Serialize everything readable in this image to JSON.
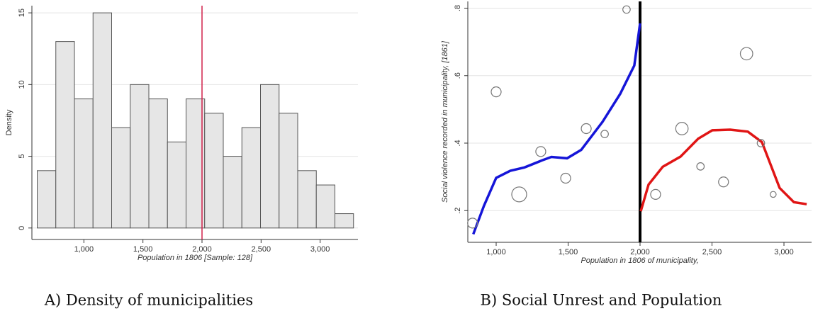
{
  "chart_data": [
    {
      "type": "histogram",
      "caption": "A) Density of municipalities",
      "x_label": "Population in 1806 [Sample: 128]",
      "y_label": "Density",
      "bins": [
        605,
        762.5,
        920,
        1077.5,
        1235,
        1392.5,
        1550,
        1707.5,
        1865,
        2022.5,
        2180,
        2337.5,
        2495,
        2652.5,
        2810,
        2967.5,
        3125,
        3282.5
      ],
      "values": [
        4,
        13,
        9,
        15,
        7,
        10,
        9,
        6,
        9,
        8,
        5,
        7,
        10,
        8,
        4,
        3,
        1
      ],
      "color": "#e6e6e6",
      "edge_color": "#555555",
      "cutoff": 2000,
      "cutoff_color": "#d0204a",
      "xlim": [
        560,
        3320
      ],
      "ylim": [
        -0.8,
        15.5
      ],
      "xticks": [
        {
          "value": 1000,
          "label": "1,000"
        },
        {
          "value": 1500,
          "label": "1,500"
        },
        {
          "value": 2000,
          "label": "2,000"
        },
        {
          "value": 2500,
          "label": "2,500"
        },
        {
          "value": 3000,
          "label": "3,000"
        }
      ],
      "yticks": [
        0,
        5,
        10,
        15
      ],
      "grid": true
    },
    {
      "type": "scatter",
      "caption": "B) Social Unrest and Population",
      "x_label": "Population in 1806 of municipality,",
      "y_label": "Social violence recorded in municipality, [1861]",
      "x": [
        836,
        1000,
        1160,
        1310,
        1483,
        1626,
        1754,
        1906,
        2108,
        2291,
        2420,
        2580,
        2740,
        2840,
        2925
      ],
      "values": [
        0.163,
        0.552,
        0.248,
        0.375,
        0.296,
        0.443,
        0.427,
        0.796,
        0.248,
        0.443,
        0.331,
        0.285,
        0.665,
        0.4,
        0.248
      ],
      "sizes": [
        2,
        2,
        3,
        2,
        2,
        2,
        1.5,
        1.5,
        2,
        2.5,
        1.5,
        2,
        2.5,
        1.5,
        1.2
      ],
      "color": "#777777",
      "lines": [
        {
          "color": "#1515d8",
          "x": [
            841,
            915,
            1000,
            1098,
            1197,
            1320,
            1384,
            1493,
            1591,
            1739,
            1862,
            1960,
            2000
          ],
          "y": [
            0.13,
            0.214,
            0.297,
            0.318,
            0.328,
            0.349,
            0.359,
            0.355,
            0.38,
            0.463,
            0.546,
            0.63,
            0.755
          ]
        },
        {
          "color": "#e01515",
          "x": [
            2005,
            2059,
            2158,
            2281,
            2404,
            2502,
            2626,
            2749,
            2847,
            2970,
            3069,
            3158
          ],
          "y": [
            0.198,
            0.277,
            0.33,
            0.36,
            0.413,
            0.438,
            0.44,
            0.434,
            0.403,
            0.267,
            0.225,
            0.219
          ]
        }
      ],
      "cutoff": 2000,
      "cutoff_color": "#000000",
      "xlim": [
        803,
        3192
      ],
      "ylim": [
        0.106,
        0.82
      ],
      "xticks": [
        {
          "value": 1000,
          "label": "1,000"
        },
        {
          "value": 1500,
          "label": "1,500"
        },
        {
          "value": 2000,
          "label": "2,000"
        },
        {
          "value": 2500,
          "label": "2,500"
        },
        {
          "value": 3000,
          "label": "3,000"
        }
      ],
      "yticks": [
        {
          "value": 0.2,
          "label": ".2"
        },
        {
          "value": 0.4,
          "label": ".4"
        },
        {
          "value": 0.6,
          "label": ".6"
        },
        {
          "value": 0.8,
          "label": ".8"
        }
      ],
      "grid": true
    }
  ]
}
